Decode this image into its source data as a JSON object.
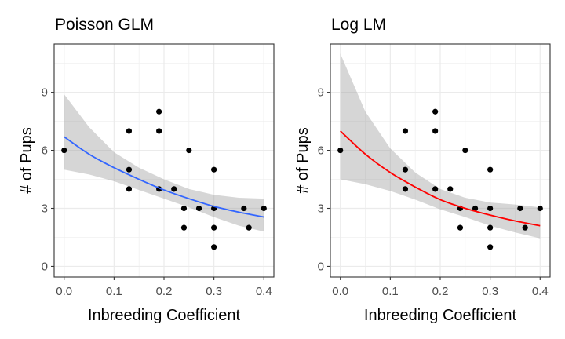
{
  "chart_data": [
    {
      "type": "scatter",
      "title": "Poisson GLM",
      "xlabel": "Inbreeding Coefficient",
      "ylabel": "# of Pups",
      "xlim": [
        -0.02,
        0.42
      ],
      "ylim": [
        -0.55,
        11.5
      ],
      "xticks": [
        0.0,
        0.1,
        0.2,
        0.3,
        0.4
      ],
      "xtick_labels": [
        "0.0",
        "0.1",
        "0.2",
        "0.3",
        "0.4"
      ],
      "yticks": [
        0,
        3,
        6,
        9
      ],
      "ytick_labels": [
        "0",
        "3",
        "6",
        "9"
      ],
      "grid": true,
      "fit_color": "#3366FF",
      "points": [
        {
          "x": 0.0,
          "y": 6
        },
        {
          "x": 0.13,
          "y": 7
        },
        {
          "x": 0.13,
          "y": 5
        },
        {
          "x": 0.13,
          "y": 4
        },
        {
          "x": 0.19,
          "y": 8
        },
        {
          "x": 0.19,
          "y": 7
        },
        {
          "x": 0.19,
          "y": 4
        },
        {
          "x": 0.22,
          "y": 4
        },
        {
          "x": 0.24,
          "y": 3
        },
        {
          "x": 0.24,
          "y": 2
        },
        {
          "x": 0.25,
          "y": 6
        },
        {
          "x": 0.27,
          "y": 3
        },
        {
          "x": 0.3,
          "y": 5
        },
        {
          "x": 0.3,
          "y": 3
        },
        {
          "x": 0.3,
          "y": 2
        },
        {
          "x": 0.3,
          "y": 1
        },
        {
          "x": 0.36,
          "y": 3
        },
        {
          "x": 0.37,
          "y": 2
        },
        {
          "x": 0.4,
          "y": 3
        }
      ],
      "fit": [
        {
          "x": 0.0,
          "y": 6.7,
          "lo": 5.0,
          "hi": 8.9
        },
        {
          "x": 0.05,
          "y": 5.8,
          "lo": 4.75,
          "hi": 7.2
        },
        {
          "x": 0.1,
          "y": 5.1,
          "lo": 4.4,
          "hi": 5.9
        },
        {
          "x": 0.15,
          "y": 4.5,
          "lo": 3.95,
          "hi": 5.1
        },
        {
          "x": 0.2,
          "y": 3.95,
          "lo": 3.5,
          "hi": 4.5
        },
        {
          "x": 0.25,
          "y": 3.5,
          "lo": 3.05,
          "hi": 4.0
        },
        {
          "x": 0.3,
          "y": 3.1,
          "lo": 2.55,
          "hi": 3.7
        },
        {
          "x": 0.35,
          "y": 2.8,
          "lo": 2.1,
          "hi": 3.55
        },
        {
          "x": 0.4,
          "y": 2.55,
          "lo": 1.8,
          "hi": 3.5
        }
      ]
    },
    {
      "type": "scatter",
      "title": "Log LM",
      "xlabel": "Inbreeding Coefficient",
      "ylabel": "# of Pups",
      "xlim": [
        -0.02,
        0.42
      ],
      "ylim": [
        -0.55,
        11.5
      ],
      "xticks": [
        0.0,
        0.1,
        0.2,
        0.3,
        0.4
      ],
      "xtick_labels": [
        "0.0",
        "0.1",
        "0.2",
        "0.3",
        "0.4"
      ],
      "yticks": [
        0,
        3,
        6,
        9
      ],
      "ytick_labels": [
        "0",
        "3",
        "6",
        "9"
      ],
      "grid": true,
      "fit_color": "#FF0000",
      "points": [
        {
          "x": 0.0,
          "y": 6
        },
        {
          "x": 0.13,
          "y": 7
        },
        {
          "x": 0.13,
          "y": 5
        },
        {
          "x": 0.13,
          "y": 4
        },
        {
          "x": 0.19,
          "y": 8
        },
        {
          "x": 0.19,
          "y": 7
        },
        {
          "x": 0.19,
          "y": 4
        },
        {
          "x": 0.22,
          "y": 4
        },
        {
          "x": 0.24,
          "y": 3
        },
        {
          "x": 0.24,
          "y": 2
        },
        {
          "x": 0.25,
          "y": 6
        },
        {
          "x": 0.27,
          "y": 3
        },
        {
          "x": 0.3,
          "y": 5
        },
        {
          "x": 0.3,
          "y": 3
        },
        {
          "x": 0.3,
          "y": 2
        },
        {
          "x": 0.3,
          "y": 1
        },
        {
          "x": 0.36,
          "y": 3
        },
        {
          "x": 0.37,
          "y": 2
        },
        {
          "x": 0.4,
          "y": 3
        }
      ],
      "fit": [
        {
          "x": 0.0,
          "y": 7.0,
          "lo": 4.5,
          "hi": 11.0
        },
        {
          "x": 0.05,
          "y": 5.8,
          "lo": 4.25,
          "hi": 8.0
        },
        {
          "x": 0.1,
          "y": 4.85,
          "lo": 3.9,
          "hi": 6.1
        },
        {
          "x": 0.15,
          "y": 4.1,
          "lo": 3.45,
          "hi": 4.85
        },
        {
          "x": 0.2,
          "y": 3.45,
          "lo": 2.95,
          "hi": 4.0
        },
        {
          "x": 0.25,
          "y": 3.0,
          "lo": 2.55,
          "hi": 3.55
        },
        {
          "x": 0.3,
          "y": 2.65,
          "lo": 2.1,
          "hi": 3.3
        },
        {
          "x": 0.35,
          "y": 2.35,
          "lo": 1.75,
          "hi": 3.2
        },
        {
          "x": 0.4,
          "y": 2.1,
          "lo": 1.45,
          "hi": 3.05
        }
      ]
    }
  ]
}
